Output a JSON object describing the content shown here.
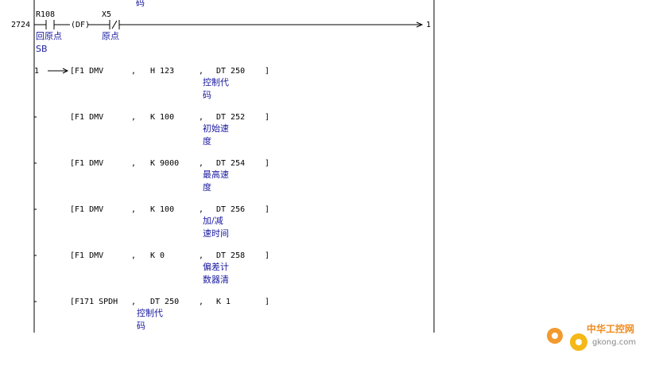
{
  "header": {
    "fragment": "码"
  },
  "rung": {
    "step": "2724",
    "contacts": [
      {
        "label": "R108",
        "comment": [
          "回原点",
          "SB"
        ]
      },
      {
        "label": "X5",
        "comment": [
          "原点"
        ]
      }
    ],
    "function": "(DF)",
    "output": "1"
  },
  "instructions": [
    {
      "lead": "1",
      "op": "[F1 DMV",
      "args": [
        {
          "text": "H 123"
        },
        {
          "text": "DT 250",
          "comment": [
            "控制代",
            "码"
          ]
        }
      ]
    },
    {
      "op": "[F1 DMV",
      "args": [
        {
          "text": "K 100"
        },
        {
          "text": "DT 252",
          "comment": [
            "初始速",
            "度"
          ]
        }
      ]
    },
    {
      "op": "[F1 DMV",
      "args": [
        {
          "text": "K 9000"
        },
        {
          "text": "DT 254",
          "comment": [
            "最高速",
            "度"
          ]
        }
      ]
    },
    {
      "op": "[F1 DMV",
      "args": [
        {
          "text": "K 100"
        },
        {
          "text": "DT 256",
          "comment": [
            "加/减",
            "速时间"
          ]
        }
      ]
    },
    {
      "op": "[F1 DMV",
      "args": [
        {
          "text": "K 0"
        },
        {
          "text": "DT 258",
          "comment": [
            "偏差计",
            "数器清"
          ]
        }
      ]
    },
    {
      "op": "[F171 SPDH",
      "args": [
        {
          "text": "DT 250",
          "comment": [
            "控制代",
            "码"
          ]
        },
        {
          "text": "K 1"
        }
      ]
    }
  ],
  "watermark": {
    "name": "中华工控网",
    "site": "gkong.com"
  }
}
